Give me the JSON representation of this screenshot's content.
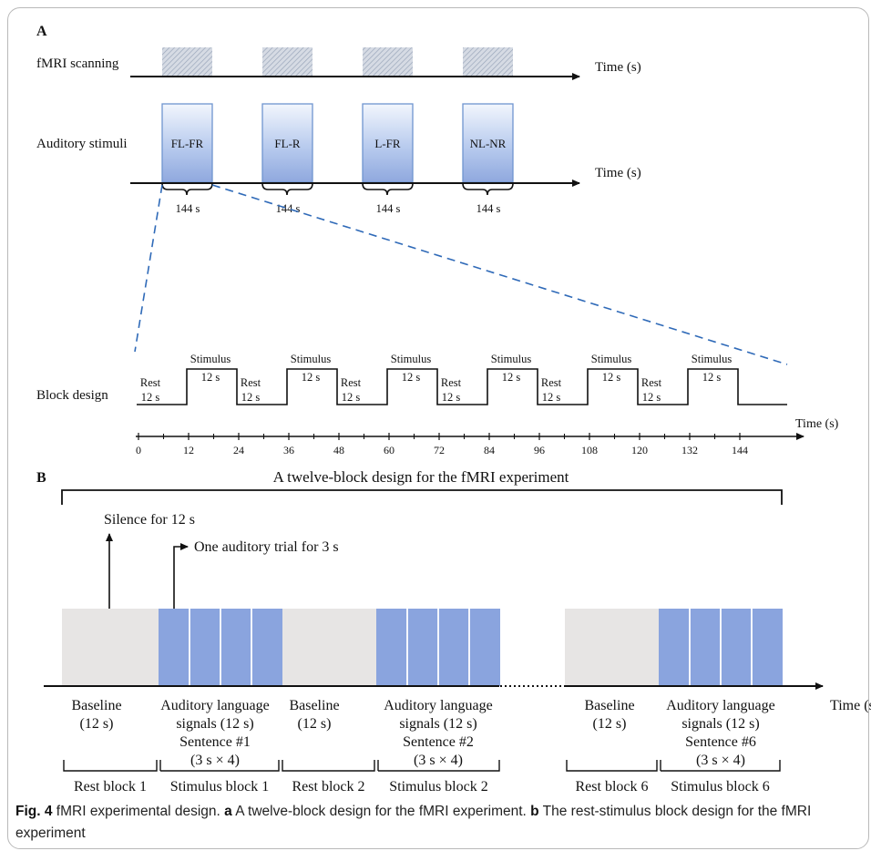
{
  "panel_a": {
    "label": "A",
    "rows": [
      {
        "label": "fMRI scanning",
        "axis_label": "Time (s)"
      },
      {
        "label": "Auditory stimuli",
        "axis_label": "Time (s)"
      }
    ],
    "conditions": [
      "FL-FR",
      "FL-R",
      "L-FR",
      "NL-NR"
    ],
    "condition_duration": "144 s",
    "block_design": {
      "row_label": "Block design",
      "rest": {
        "name": "Rest",
        "duration": "12 s"
      },
      "stimulus": {
        "name": "Stimulus",
        "duration": "12 s"
      },
      "n_pairs": 6,
      "ticks": [
        "0",
        "12",
        "24",
        "36",
        "48",
        "60",
        "72",
        "84",
        "96",
        "108",
        "120",
        "132",
        "144"
      ],
      "axis_label": "Time (s)"
    }
  },
  "panel_b": {
    "label": "B",
    "title": "A twelve-block design for the fMRI experiment",
    "silence_note": "Silence for 12 s",
    "trial_note": "One auditory trial for 3 s",
    "axis_label": "Time (s)",
    "rest_desc": {
      "line1": "Baseline",
      "line2": "(12 s)"
    },
    "stim_desc": {
      "line1": "Auditory language",
      "line2": "signals (12 s)",
      "line4": "(3 s × 4)"
    },
    "groups": [
      {
        "sentence": "Sentence #1",
        "rest_block": "Rest block 1",
        "stimulus_block": "Stimulus block 1"
      },
      {
        "sentence": "Sentence #2",
        "rest_block": "Rest block 2",
        "stimulus_block": "Stimulus block 2"
      },
      {
        "sentence": "Sentence #6",
        "rest_block": "Rest block 6",
        "stimulus_block": "Stimulus block 6"
      }
    ],
    "colors": {
      "rest": "#e7e5e4",
      "stimulus": "#8aa4de"
    }
  },
  "caption": {
    "fig": "Fig. 4",
    "text": " fMRI experimental design.",
    "a_label": "a",
    "a_text": " A twelve-block design for the fMRI experiment.",
    "b_label": "b",
    "b_text": " The rest-stimulus block design for the fMRI experiment"
  }
}
